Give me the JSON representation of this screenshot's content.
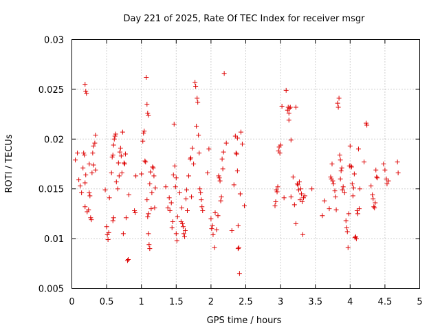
{
  "chart_data": {
    "type": "scatter",
    "title": "Day 221 of 2025, Rate Of TEC Index for receiver msgr",
    "xlabel": "GPS time / hours",
    "ylabel": "ROTI / TECUs",
    "xlim": [
      0,
      5
    ],
    "ylim": [
      0.005,
      0.03
    ],
    "xticks": [
      0,
      0.5,
      1,
      1.5,
      2,
      2.5,
      3,
      3.5,
      4,
      4.5,
      5
    ],
    "xtick_labels": [
      "0",
      "0.5",
      "1",
      "1.5",
      "2",
      "2.5",
      "3",
      "3.5",
      "4",
      "4.5",
      "5"
    ],
    "yticks": [
      0.005,
      0.01,
      0.015,
      0.02,
      0.025,
      0.03
    ],
    "ytick_labels": [
      "0.005",
      "0.01",
      "0.015",
      "0.02",
      "0.025",
      "0.03"
    ],
    "grid": true,
    "marker": "plus",
    "color": "#dd0000",
    "series": [
      {
        "name": "ROTI",
        "points": [
          [
            0.05,
            0.0179
          ],
          [
            0.08,
            0.0186
          ],
          [
            0.1,
            0.0159
          ],
          [
            0.12,
            0.0153
          ],
          [
            0.14,
            0.0146
          ],
          [
            0.16,
            0.0171
          ],
          [
            0.17,
            0.0186
          ],
          [
            0.18,
            0.0184
          ],
          [
            0.19,
            0.0255
          ],
          [
            0.2,
            0.0248
          ],
          [
            0.21,
            0.0246
          ],
          [
            0.19,
            0.0156
          ],
          [
            0.19,
            0.0132
          ],
          [
            0.2,
            0.0164
          ],
          [
            0.22,
            0.0127
          ],
          [
            0.24,
            0.0129
          ],
          [
            0.25,
            0.0175
          ],
          [
            0.25,
            0.0146
          ],
          [
            0.26,
            0.0143
          ],
          [
            0.27,
            0.0121
          ],
          [
            0.28,
            0.0119
          ],
          [
            0.29,
            0.0166
          ],
          [
            0.3,
            0.0186
          ],
          [
            0.31,
            0.0193
          ],
          [
            0.33,
            0.0196
          ],
          [
            0.34,
            0.0204
          ],
          [
            0.31,
            0.0174
          ],
          [
            0.34,
            0.0169
          ],
          [
            0.48,
            0.0149
          ],
          [
            0.5,
            0.0112
          ],
          [
            0.51,
            0.0104
          ],
          [
            0.52,
            0.0099
          ],
          [
            0.53,
            0.0106
          ],
          [
            0.54,
            0.0141
          ],
          [
            0.57,
            0.0166
          ],
          [
            0.58,
            0.0182
          ],
          [
            0.59,
            0.0184
          ],
          [
            0.6,
            0.0194
          ],
          [
            0.61,
            0.02
          ],
          [
            0.62,
            0.0203
          ],
          [
            0.63,
            0.0205
          ],
          [
            0.59,
            0.0118
          ],
          [
            0.6,
            0.0121
          ],
          [
            0.64,
            0.0157
          ],
          [
            0.66,
            0.015
          ],
          [
            0.67,
            0.0176
          ],
          [
            0.68,
            0.0163
          ],
          [
            0.69,
            0.0187
          ],
          [
            0.7,
            0.0191
          ],
          [
            0.71,
            0.0183
          ],
          [
            0.72,
            0.0166
          ],
          [
            0.73,
            0.0207
          ],
          [
            0.74,
            0.0105
          ],
          [
            0.75,
            0.0176
          ],
          [
            0.76,
            0.0175
          ],
          [
            0.77,
            0.0185
          ],
          [
            0.78,
            0.0121
          ],
          [
            0.8,
            0.0078
          ],
          [
            0.81,
            0.0079
          ],
          [
            0.82,
            0.0144
          ],
          [
            0.9,
            0.0128
          ],
          [
            0.91,
            0.0126
          ],
          [
            0.92,
            0.0163
          ],
          [
            1.0,
            0.0165
          ],
          [
            1.02,
            0.0198
          ],
          [
            1.03,
            0.0206
          ],
          [
            1.04,
            0.0208
          ],
          [
            1.05,
            0.0178
          ],
          [
            1.06,
            0.0177
          ],
          [
            1.07,
            0.0262
          ],
          [
            1.08,
            0.0235
          ],
          [
            1.09,
            0.0226
          ],
          [
            1.1,
            0.0224
          ],
          [
            1.1,
            0.0105
          ],
          [
            1.11,
            0.0094
          ],
          [
            1.12,
            0.009
          ],
          [
            1.12,
            0.0155
          ],
          [
            1.13,
            0.0167
          ],
          [
            1.14,
            0.013
          ],
          [
            1.15,
            0.0146
          ],
          [
            1.16,
            0.0172
          ],
          [
            1.17,
            0.0171
          ],
          [
            1.18,
            0.0163
          ],
          [
            1.19,
            0.0131
          ],
          [
            1.2,
            0.0151
          ],
          [
            1.08,
            0.0139
          ],
          [
            1.09,
            0.0122
          ],
          [
            1.1,
            0.0125
          ],
          [
            1.35,
            0.0152
          ],
          [
            1.38,
            0.0131
          ],
          [
            1.4,
            0.0141
          ],
          [
            1.41,
            0.0128
          ],
          [
            1.43,
            0.0136
          ],
          [
            1.44,
            0.0111
          ],
          [
            1.45,
            0.0117
          ],
          [
            1.46,
            0.0164
          ],
          [
            1.47,
            0.0215
          ],
          [
            1.48,
            0.0173
          ],
          [
            1.49,
            0.0152
          ],
          [
            1.5,
            0.0161
          ],
          [
            1.5,
            0.0105
          ],
          [
            1.51,
            0.0098
          ],
          [
            1.52,
            0.0122
          ],
          [
            1.55,
            0.0146
          ],
          [
            1.57,
            0.0117
          ],
          [
            1.58,
            0.0131
          ],
          [
            1.59,
            0.0115
          ],
          [
            1.6,
            0.0112
          ],
          [
            1.61,
            0.0105
          ],
          [
            1.62,
            0.0102
          ],
          [
            1.63,
            0.0108
          ],
          [
            1.64,
            0.014
          ],
          [
            1.65,
            0.0149
          ],
          [
            1.66,
            0.0128
          ],
          [
            1.68,
            0.0163
          ],
          [
            1.7,
            0.018
          ],
          [
            1.71,
            0.0181
          ],
          [
            1.72,
            0.0142
          ],
          [
            1.73,
            0.0191
          ],
          [
            1.75,
            0.0175
          ],
          [
            1.77,
            0.0257
          ],
          [
            1.78,
            0.0253
          ],
          [
            1.8,
            0.0241
          ],
          [
            1.81,
            0.0237
          ],
          [
            1.79,
            0.0213
          ],
          [
            1.82,
            0.0204
          ],
          [
            1.83,
            0.0186
          ],
          [
            1.84,
            0.015
          ],
          [
            1.85,
            0.0146
          ],
          [
            1.86,
            0.0139
          ],
          [
            1.87,
            0.0132
          ],
          [
            1.88,
            0.0128
          ],
          [
            1.95,
            0.0166
          ],
          [
            1.97,
            0.019
          ],
          [
            2.0,
            0.012
          ],
          [
            2.01,
            0.011
          ],
          [
            2.02,
            0.0113
          ],
          [
            2.03,
            0.0104
          ],
          [
            2.05,
            0.0091
          ],
          [
            2.06,
            0.0126
          ],
          [
            2.08,
            0.0109
          ],
          [
            2.1,
            0.0123
          ],
          [
            2.11,
            0.0163
          ],
          [
            2.12,
            0.0161
          ],
          [
            2.13,
            0.0158
          ],
          [
            2.14,
            0.0138
          ],
          [
            2.15,
            0.0142
          ],
          [
            2.16,
            0.018
          ],
          [
            2.17,
            0.017
          ],
          [
            2.18,
            0.0187
          ],
          [
            2.19,
            0.0266
          ],
          [
            2.22,
            0.0196
          ],
          [
            2.3,
            0.0108
          ],
          [
            2.33,
            0.0154
          ],
          [
            2.35,
            0.0203
          ],
          [
            2.36,
            0.0186
          ],
          [
            2.37,
            0.0185
          ],
          [
            2.38,
            0.0201
          ],
          [
            2.39,
            0.0113
          ],
          [
            2.39,
            0.009
          ],
          [
            2.4,
            0.0091
          ],
          [
            2.41,
            0.0065
          ],
          [
            2.42,
            0.0145
          ],
          [
            2.43,
            0.0207
          ],
          [
            2.45,
            0.0195
          ],
          [
            2.48,
            0.0133
          ],
          [
            2.38,
            0.0168
          ],
          [
            2.92,
            0.0133
          ],
          [
            2.93,
            0.0137
          ],
          [
            2.94,
            0.0149
          ],
          [
            2.95,
            0.0147
          ],
          [
            2.96,
            0.0152
          ],
          [
            2.97,
            0.0188
          ],
          [
            2.98,
            0.0192
          ],
          [
            2.99,
            0.0186
          ],
          [
            3.0,
            0.0194
          ],
          [
            3.02,
            0.0233
          ],
          [
            3.05,
            0.0141
          ],
          [
            3.08,
            0.0249
          ],
          [
            3.1,
            0.0229
          ],
          [
            3.11,
            0.0232
          ],
          [
            3.12,
            0.0219
          ],
          [
            3.13,
            0.0231
          ],
          [
            3.14,
            0.0232
          ],
          [
            3.15,
            0.0199
          ],
          [
            3.12,
            0.0226
          ],
          [
            3.15,
            0.0142
          ],
          [
            3.18,
            0.0162
          ],
          [
            3.2,
            0.0134
          ],
          [
            3.22,
            0.0115
          ],
          [
            3.24,
            0.0155
          ],
          [
            3.25,
            0.0154
          ],
          [
            3.26,
            0.0149
          ],
          [
            3.27,
            0.0157
          ],
          [
            3.28,
            0.0139
          ],
          [
            3.29,
            0.015
          ],
          [
            3.3,
            0.0145
          ],
          [
            3.31,
            0.0137
          ],
          [
            3.32,
            0.0104
          ],
          [
            3.33,
            0.0141
          ],
          [
            3.35,
            0.0143
          ],
          [
            3.22,
            0.0232
          ],
          [
            3.45,
            0.015
          ],
          [
            3.6,
            0.0123
          ],
          [
            3.63,
            0.0138
          ],
          [
            3.7,
            0.013
          ],
          [
            3.72,
            0.0162
          ],
          [
            3.73,
            0.016
          ],
          [
            3.74,
            0.0175
          ],
          [
            3.75,
            0.0158
          ],
          [
            3.76,
            0.0155
          ],
          [
            3.78,
            0.0148
          ],
          [
            3.79,
            0.0142
          ],
          [
            3.8,
            0.0129
          ],
          [
            3.82,
            0.0236
          ],
          [
            3.83,
            0.0232
          ],
          [
            3.84,
            0.0241
          ],
          [
            3.85,
            0.0184
          ],
          [
            3.86,
            0.0179
          ],
          [
            3.87,
            0.0168
          ],
          [
            3.88,
            0.0171
          ],
          [
            3.89,
            0.0149
          ],
          [
            3.9,
            0.0152
          ],
          [
            3.92,
            0.0146
          ],
          [
            3.94,
            0.0118
          ],
          [
            3.95,
            0.0111
          ],
          [
            3.96,
            0.0107
          ],
          [
            3.97,
            0.0091
          ],
          [
            3.98,
            0.0125
          ],
          [
            3.99,
            0.0173
          ],
          [
            4.0,
            0.0193
          ],
          [
            4.01,
            0.0173
          ],
          [
            4.02,
            0.0172
          ],
          [
            4.03,
            0.0155
          ],
          [
            4.04,
            0.0143
          ],
          [
            4.05,
            0.0151
          ],
          [
            4.06,
            0.0165
          ],
          [
            4.07,
            0.0101
          ],
          [
            4.08,
            0.0102
          ],
          [
            4.09,
            0.01
          ],
          [
            4.1,
            0.0128
          ],
          [
            4.11,
            0.0125
          ],
          [
            4.12,
            0.019
          ],
          [
            4.13,
            0.013
          ],
          [
            4.14,
            0.015
          ],
          [
            3.86,
            0.016
          ],
          [
            4.2,
            0.0177
          ],
          [
            4.23,
            0.0216
          ],
          [
            4.24,
            0.0214
          ],
          [
            4.3,
            0.0153
          ],
          [
            4.32,
            0.0144
          ],
          [
            4.33,
            0.014
          ],
          [
            4.34,
            0.0132
          ],
          [
            4.35,
            0.0131
          ],
          [
            4.36,
            0.0136
          ],
          [
            4.37,
            0.0169
          ],
          [
            4.38,
            0.0162
          ],
          [
            4.39,
            0.0161
          ],
          [
            4.48,
            0.0175
          ],
          [
            4.5,
            0.0169
          ],
          [
            4.52,
            0.016
          ],
          [
            4.53,
            0.0155
          ],
          [
            4.55,
            0.0158
          ],
          [
            4.68,
            0.0177
          ],
          [
            4.69,
            0.0166
          ]
        ]
      }
    ]
  }
}
